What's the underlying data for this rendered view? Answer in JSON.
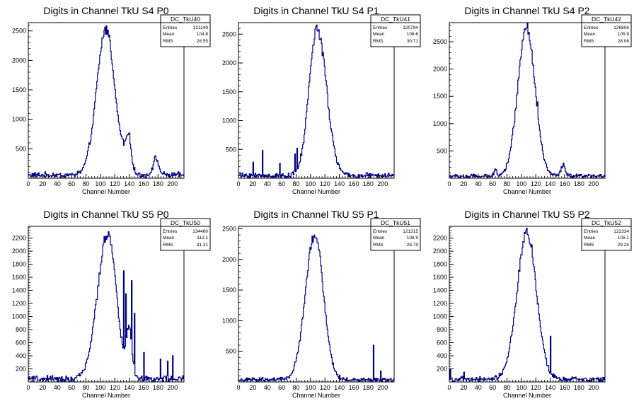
{
  "x_axis_label": "Channel Number",
  "stats_labels": {
    "entries": "Entries",
    "mean": "Mean",
    "rms": "RMS"
  },
  "line_color": "#00007f",
  "chart_data": [
    {
      "type": "histogram",
      "title": "Digits in Channel TkU S4 P0",
      "xlabel": "Channel Number",
      "ylabel": "",
      "xlim": [
        0,
        216
      ],
      "ylim": [
        0,
        2640
      ],
      "xticks": [
        0,
        20,
        40,
        60,
        80,
        100,
        120,
        140,
        160,
        180,
        200
      ],
      "yticks": [
        500,
        1000,
        1500,
        2000,
        2500
      ],
      "stats": {
        "name": "DC_TkU40",
        "entries": "121149",
        "mean": "104.8",
        "rms": "28.55"
      },
      "profile": {
        "peak": 2480,
        "center": 108,
        "sigma_left": 13,
        "sigma_right": 12,
        "baseline": 60,
        "noise": 50,
        "bumps": [
          [
            139,
            620,
            4
          ],
          [
            177,
            280,
            4
          ],
          [
            130,
            120,
            3
          ]
        ],
        "spikes": []
      }
    },
    {
      "type": "histogram",
      "title": "Digits in Channel TkU S4 P1",
      "xlabel": "Channel Number",
      "ylabel": "",
      "xlim": [
        0,
        216
      ],
      "ylim": [
        0,
        2700
      ],
      "xticks": [
        0,
        20,
        40,
        60,
        80,
        100,
        120,
        140,
        160,
        180,
        200
      ],
      "yticks": [
        500,
        1000,
        1500,
        2000,
        2500
      ],
      "stats": {
        "name": "DC_TkU41",
        "entries": "120794",
        "mean": "106.6",
        "rms": "30.71"
      },
      "profile": {
        "peak": 2560,
        "center": 109,
        "sigma_left": 11,
        "sigma_right": 13,
        "baseline": 50,
        "noise": 60,
        "bumps": [],
        "spikes": [
          [
            78,
            420
          ],
          [
            81,
            520
          ],
          [
            33,
            480
          ],
          [
            20,
            280
          ],
          [
            57,
            260
          ]
        ]
      }
    },
    {
      "type": "histogram",
      "title": "Digits in Channel TkU S4 P2",
      "xlabel": "Channel Number",
      "ylabel": "",
      "xlim": [
        0,
        216
      ],
      "ylim": [
        0,
        2850
      ],
      "xticks": [
        0,
        20,
        40,
        60,
        80,
        100,
        120,
        140,
        160,
        180,
        200
      ],
      "yticks": [
        500,
        1000,
        1500,
        2000,
        2500
      ],
      "stats": {
        "name": "DC_TkU42",
        "entries": "126806",
        "mean": "105.9",
        "rms": "28.06"
      },
      "profile": {
        "peak": 2720,
        "center": 107,
        "sigma_left": 12,
        "sigma_right": 12,
        "baseline": 40,
        "noise": 50,
        "bumps": [
          [
            158,
            200,
            3
          ],
          [
            64,
            140,
            2
          ]
        ],
        "spikes": [
          [
            100,
            1900
          ],
          [
            122,
            1400
          ]
        ]
      }
    },
    {
      "type": "histogram",
      "title": "Digits in Channel TkU S5 P0",
      "xlabel": "Channel Number",
      "ylabel": "",
      "xlim": [
        0,
        216
      ],
      "ylim": [
        0,
        2380
      ],
      "xticks": [
        0,
        20,
        40,
        60,
        80,
        100,
        120,
        140,
        160,
        180,
        200
      ],
      "yticks": [
        200,
        400,
        600,
        800,
        1000,
        1200,
        1400,
        1600,
        1800,
        2000,
        2200
      ],
      "stats": {
        "name": "DC_TkU50",
        "entries": "134460",
        "mean": "112.1",
        "rms": "31.31"
      },
      "profile": {
        "peak": 2220,
        "center": 110,
        "sigma_left": 14,
        "sigma_right": 12,
        "baseline": 50,
        "noise": 60,
        "bumps": [
          [
            140,
            700,
            4
          ]
        ],
        "spikes": [
          [
            132,
            1700
          ],
          [
            143,
            1550
          ],
          [
            147,
            1050
          ],
          [
            135,
            1350
          ],
          [
            160,
            450
          ],
          [
            183,
            350
          ],
          [
            193,
            320
          ],
          [
            200,
            400
          ]
        ]
      }
    },
    {
      "type": "histogram",
      "title": "Digits in Channel TkU S5 P1",
      "xlabel": "Channel Number",
      "ylabel": "",
      "xlim": [
        0,
        216
      ],
      "ylim": [
        0,
        2540
      ],
      "xticks": [
        0,
        20,
        40,
        60,
        80,
        100,
        120,
        140,
        160,
        180,
        200
      ],
      "yticks": [
        500,
        1000,
        1500,
        2000,
        2500
      ],
      "stats": {
        "name": "DC_TkU51",
        "entries": "121315",
        "mean": "106.9",
        "rms": "28.79"
      },
      "profile": {
        "peak": 2380,
        "center": 106,
        "sigma_left": 13,
        "sigma_right": 12,
        "baseline": 40,
        "noise": 40,
        "bumps": [],
        "spikes": [
          [
            187,
            600
          ],
          [
            197,
            180
          ]
        ]
      }
    },
    {
      "type": "histogram",
      "title": "Digits in Channel TkU S5 P2",
      "xlabel": "Channel Number",
      "ylabel": "",
      "xlim": [
        0,
        216
      ],
      "ylim": [
        0,
        2380
      ],
      "xticks": [
        0,
        20,
        40,
        60,
        80,
        100,
        120,
        140,
        160,
        180,
        200
      ],
      "yticks": [
        200,
        400,
        600,
        800,
        1000,
        1200,
        1400,
        1600,
        1800,
        2000,
        2200
      ],
      "stats": {
        "name": "DC_TkU52",
        "entries": "122334",
        "mean": "105.1",
        "rms": "29.25"
      },
      "profile": {
        "peak": 2240,
        "center": 108,
        "sigma_left": 14,
        "sigma_right": 13,
        "baseline": 45,
        "noise": 45,
        "bumps": [],
        "spikes": [
          [
            140,
            700
          ],
          [
            1,
            200
          ],
          [
            20,
            150
          ]
        ]
      }
    }
  ]
}
